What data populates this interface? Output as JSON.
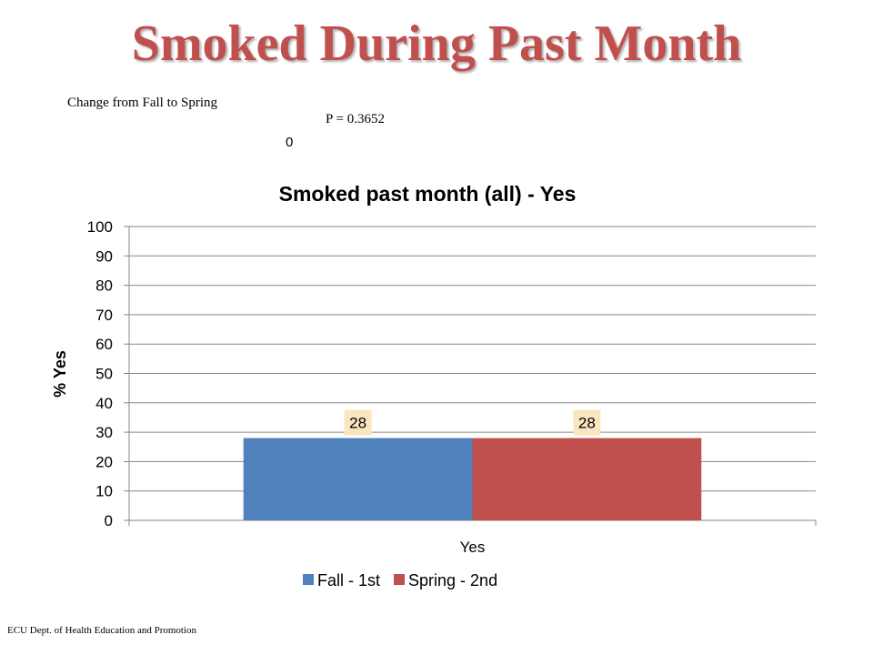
{
  "slide": {
    "title": "Smoked During Past Month",
    "change_note": "Change  from Fall to Spring",
    "p_value": "P = 0.3652",
    "zero_label": "0",
    "footer": "ECU Dept. of Health Education and Promotion"
  },
  "chart_data": {
    "type": "bar",
    "title": "Smoked past month (all) - Yes",
    "xlabel": "",
    "ylabel": "% Yes",
    "categories": [
      "Yes"
    ],
    "series": [
      {
        "name": "Fall - 1st",
        "values": [
          28
        ],
        "color": "#4f81bd"
      },
      {
        "name": "Spring - 2nd",
        "values": [
          28
        ],
        "color": "#c0504d"
      }
    ],
    "data_labels": [
      "28",
      "28"
    ],
    "ylim": [
      0,
      100
    ],
    "yticks": [
      0,
      10,
      20,
      30,
      40,
      50,
      60,
      70,
      80,
      90,
      100
    ],
    "grid": true,
    "legend": "bottom"
  }
}
